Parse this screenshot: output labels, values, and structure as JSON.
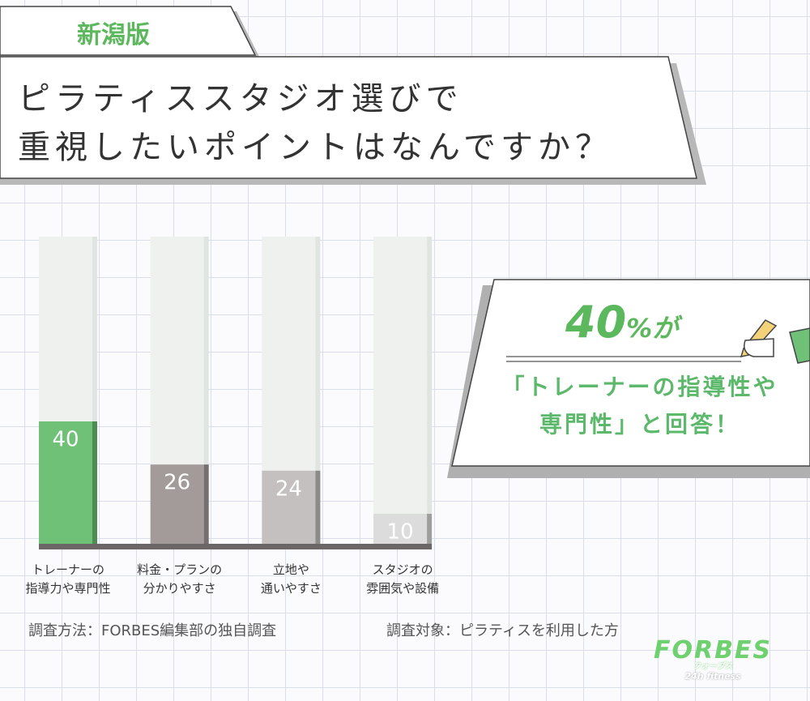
{
  "tag": "新潟版",
  "title": "ピラティススタジオ選びで\n重視したいポイントはなんですか？",
  "chart_data": {
    "type": "bar",
    "categories": [
      "トレーナーの\n指導力や専門性",
      "料金・プランの\n分かりやすさ",
      "立地や\n通いやすさ",
      "スタジオの\n雰囲気や設備"
    ],
    "values": [
      40,
      26,
      24,
      10
    ],
    "colors": [
      "#6fc177",
      "#a39b9a",
      "#c3c0bf",
      "#dcdcdc"
    ],
    "ylim": [
      0,
      100
    ]
  },
  "callout": {
    "headline": [
      "40",
      "%が"
    ],
    "body": "「トレーナーの指導性や\n専門性」と回答！"
  },
  "footnotes": [
    "調査方法：FORBES編集部の独自調査",
    "調査対象：ピラティスを利用した方"
  ],
  "logo": {
    "name": "FORBES",
    "kana": "フォーブス",
    "sub": "24h fitness"
  }
}
